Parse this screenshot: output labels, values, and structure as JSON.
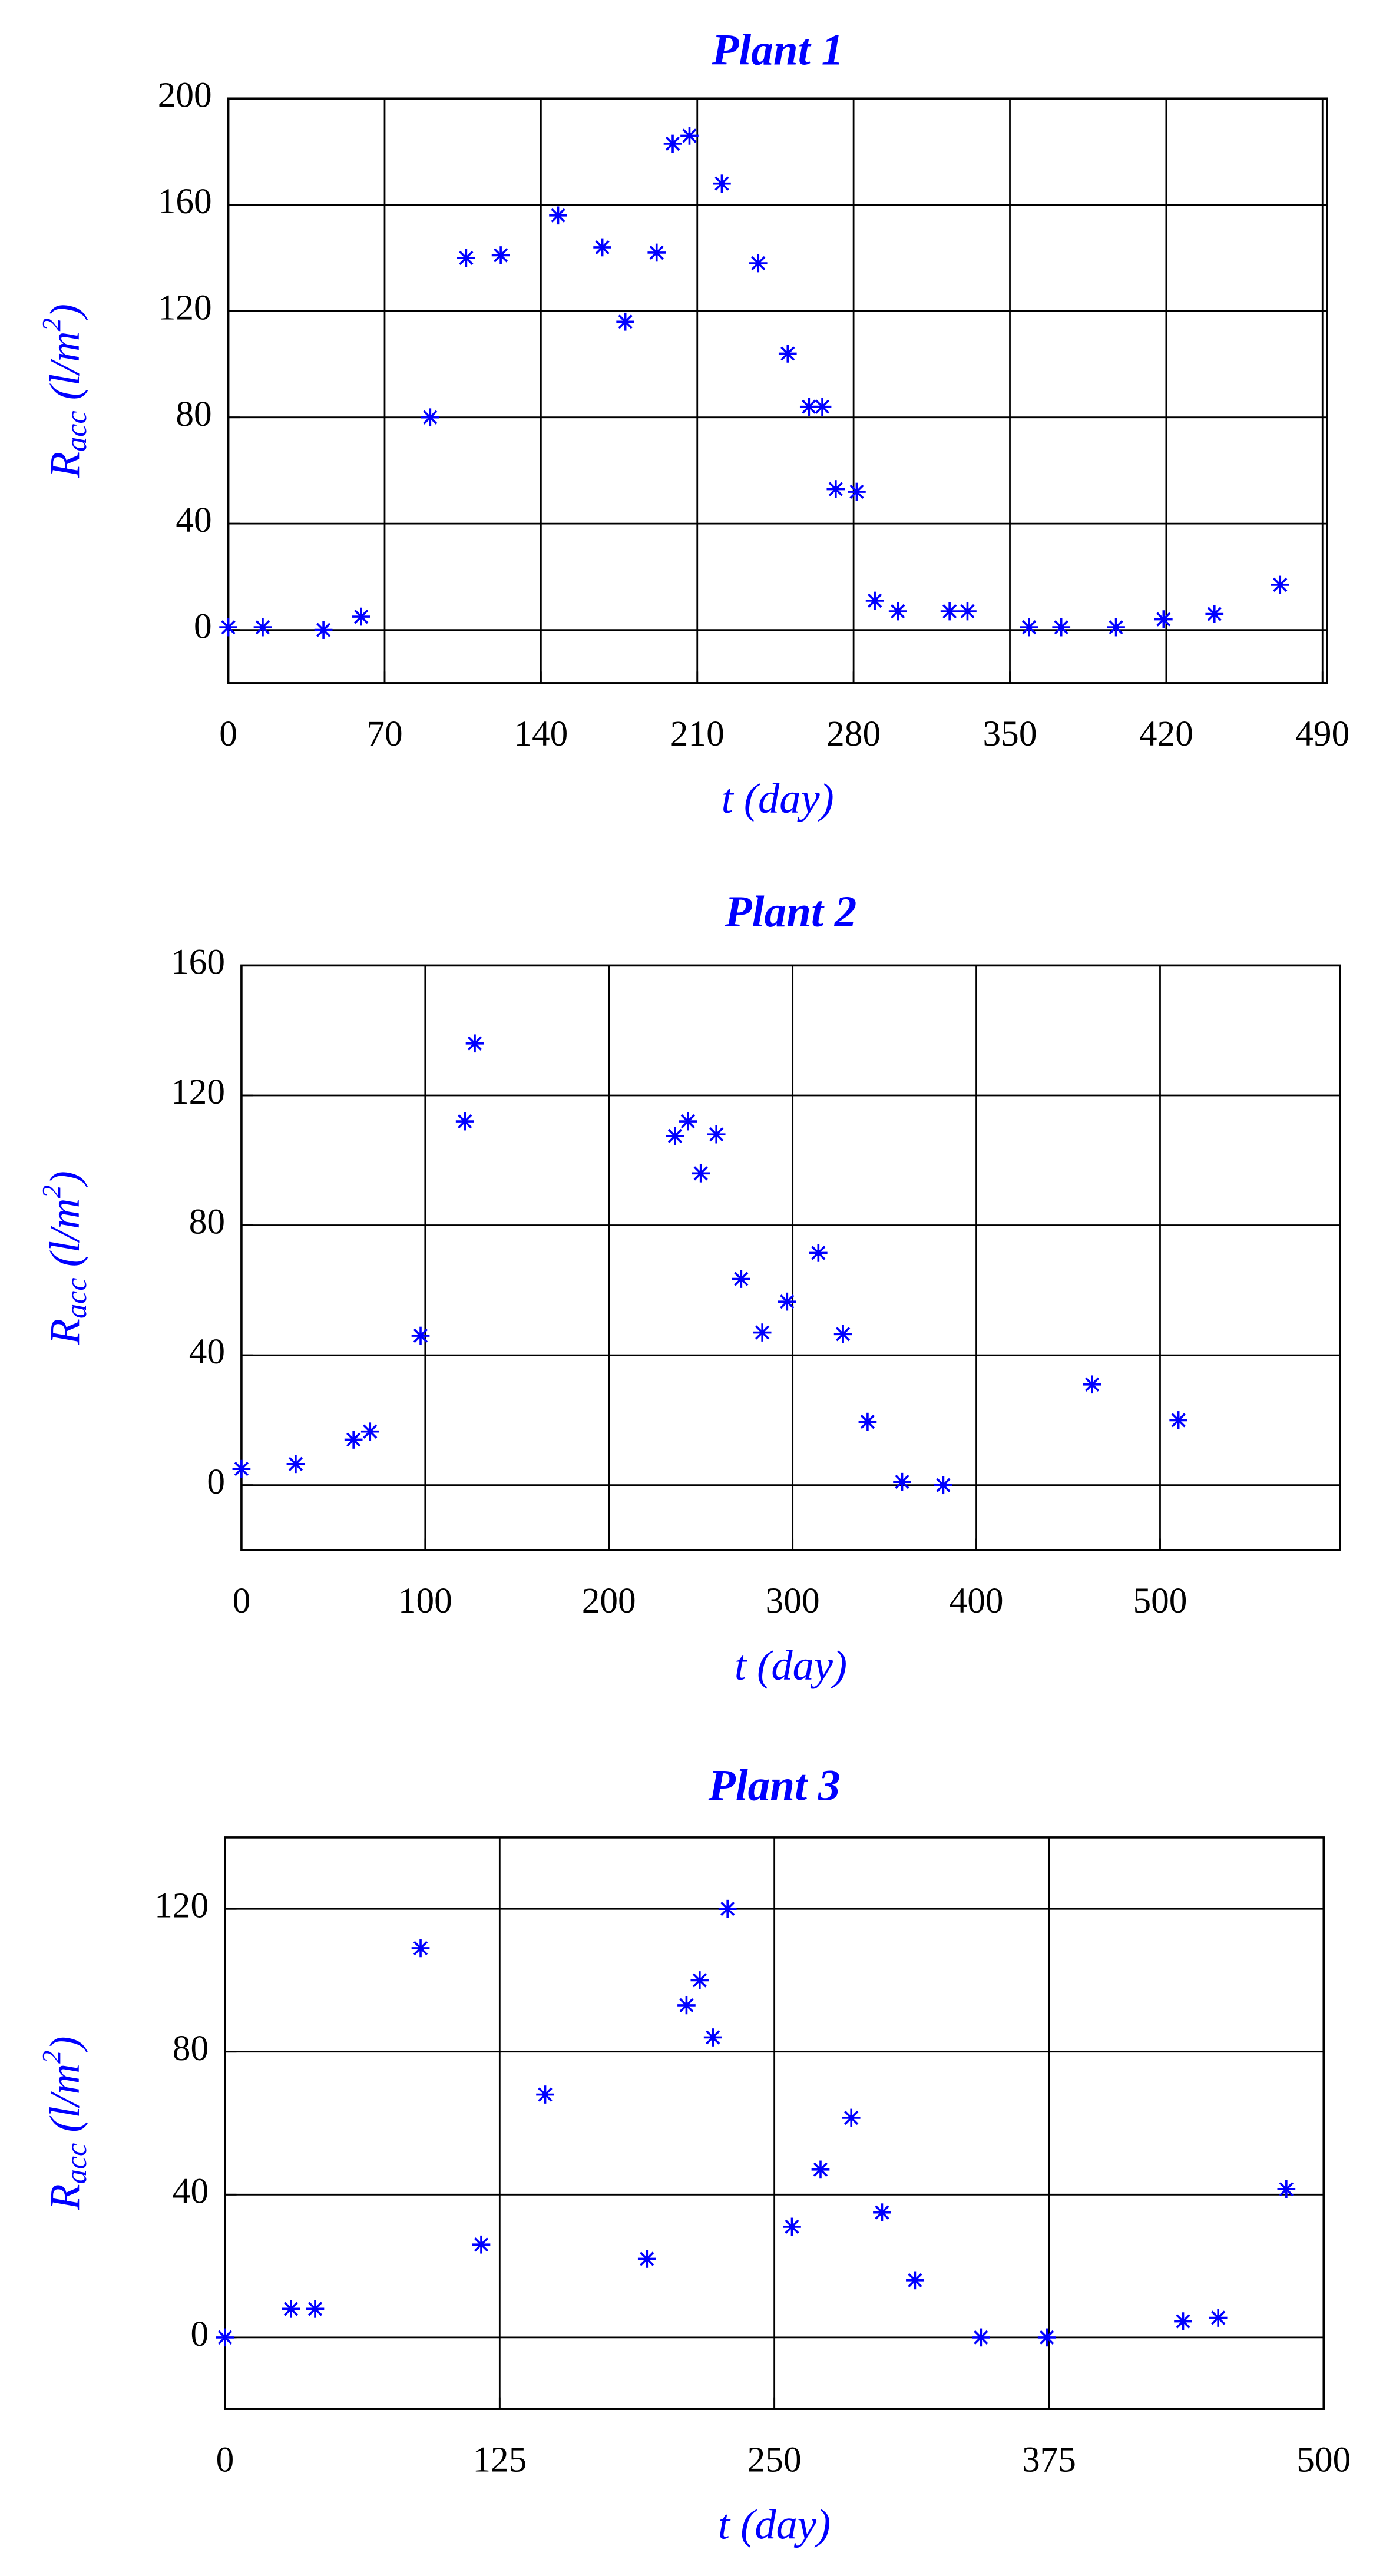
{
  "chart_data": [
    {
      "type": "scatter",
      "title": "Plant 1",
      "xlabel": "t (day)",
      "ylabel": "R_{acc} (l/m^2)",
      "color": "#0000ff",
      "grid": true,
      "xlim": [
        0,
        492
      ],
      "ylim": [
        -20,
        200
      ],
      "xticks": [
        0,
        70,
        140,
        210,
        280,
        350,
        420,
        490
      ],
      "yticks": [
        0,
        40,
        80,
        120,
        160,
        200
      ],
      "x": [
        0,
        15.4,
        42.6,
        59.5,
        90.4,
        106.5,
        122,
        147.7,
        167.5,
        177.8,
        191.8,
        199,
        206.5,
        221,
        237.3,
        250.5,
        260,
        266,
        272,
        281.4,
        289.5,
        299.8,
        323,
        331,
        358.6,
        373,
        397.5,
        418.8,
        441.6,
        471
      ],
      "values": [
        1,
        1,
        0,
        5,
        80,
        140,
        141,
        156,
        144,
        116,
        142,
        183,
        186,
        168,
        138,
        104,
        84,
        84,
        53,
        52,
        11,
        7,
        7,
        7,
        1,
        1,
        1,
        4,
        6,
        17
      ]
    },
    {
      "type": "scatter",
      "title": "Plant 2",
      "xlabel": "t (day)",
      "ylabel": "R_{acc} (l/m^2)",
      "color": "#0000ff",
      "grid": true,
      "xlim": [
        0,
        598
      ],
      "ylim": [
        -20,
        160
      ],
      "xticks": [
        0,
        100,
        200,
        300,
        400,
        500
      ],
      "yticks": [
        0,
        40,
        80,
        120,
        160
      ],
      "x": [
        0,
        29.5,
        61,
        70,
        97.5,
        121.6,
        127,
        236,
        243,
        250,
        258.5,
        272,
        283.5,
        297,
        314,
        327.4,
        340.8,
        359.6,
        382,
        463,
        510
      ],
      "values": [
        5,
        6.5,
        14,
        16.5,
        46,
        112,
        136,
        107.5,
        112,
        96,
        108,
        63.5,
        47,
        56.5,
        71.5,
        46.5,
        19.5,
        1,
        0,
        31,
        20
      ]
    },
    {
      "type": "scatter",
      "title": "Plant 3",
      "xlabel": "t (day)",
      "ylabel": "R_{acc} (l/m^2)",
      "color": "#0000ff",
      "grid": true,
      "xlim": [
        0,
        500
      ],
      "ylim": [
        -20,
        140
      ],
      "xticks": [
        0,
        125,
        250,
        375,
        500
      ],
      "yticks": [
        0,
        40,
        80,
        120
      ],
      "x": [
        0,
        30,
        41,
        89,
        116.6,
        145.7,
        192,
        210,
        216,
        222,
        228.7,
        258,
        271,
        285,
        299,
        314,
        344,
        374,
        436,
        452,
        483
      ],
      "values": [
        0,
        8,
        8,
        109,
        26,
        68,
        22,
        93,
        100,
        84,
        120,
        31,
        47,
        61.5,
        35,
        16,
        0,
        0,
        4.5,
        5.5,
        41.5
      ]
    }
  ]
}
